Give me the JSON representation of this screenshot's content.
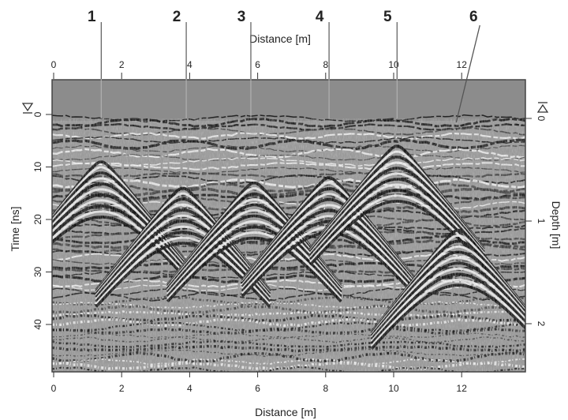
{
  "figure": {
    "top_axis_title": "Distance [m]",
    "bottom_axis_title": "Distance [m]",
    "left_axis_title": "Time [ns]",
    "right_axis_title": "Depth [m]",
    "top_ticks": [
      "0",
      "2",
      "4",
      "6",
      "8",
      "10",
      "12"
    ],
    "bottom_ticks": [
      "0",
      "2",
      "4",
      "6",
      "8",
      "10",
      "12"
    ],
    "left_ticks": [
      "0",
      "10",
      "20",
      "30",
      "40"
    ],
    "right_ticks": [
      "0",
      "1",
      "2"
    ],
    "markers": [
      {
        "label": "1",
        "distance_m": 1.4
      },
      {
        "label": "2",
        "distance_m": 3.9
      },
      {
        "label": "3",
        "distance_m": 5.8
      },
      {
        "label": "4",
        "distance_m": 8.1
      },
      {
        "label": "5",
        "distance_m": 10.1
      },
      {
        "label": "6",
        "distance_m": 11.7
      }
    ],
    "hyperbolas": [
      {
        "apex_distance_m": 1.4,
        "apex_time_ns": 9
      },
      {
        "apex_distance_m": 3.8,
        "apex_time_ns": 14
      },
      {
        "apex_distance_m": 5.9,
        "apex_time_ns": 13
      },
      {
        "apex_distance_m": 8.1,
        "apex_time_ns": 12
      },
      {
        "apex_distance_m": 10.1,
        "apex_time_ns": 6
      },
      {
        "apex_distance_m": 11.9,
        "apex_time_ns": 22
      }
    ],
    "colors": {
      "background": "#ffffff",
      "radargram_gray": "#8f8f8f",
      "ink": "#1a1a1a"
    }
  }
}
